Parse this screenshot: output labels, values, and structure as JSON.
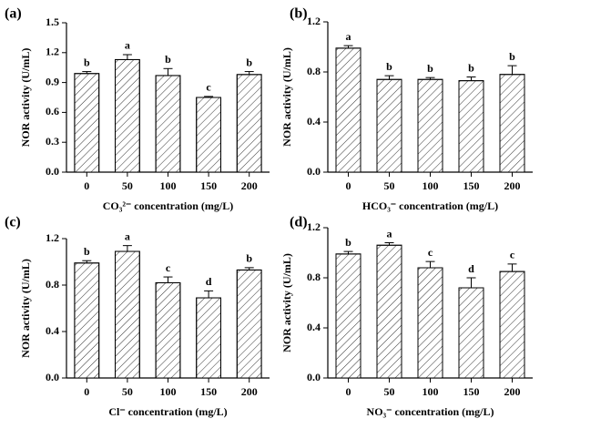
{
  "chart_data": [
    {
      "type": "bar",
      "title": "(a)",
      "xlabel": "CO₃²⁻ concentration (mg/L)",
      "ylabel": "NOR activity (U/mL)",
      "categories": [
        "0",
        "50",
        "100",
        "150",
        "200"
      ],
      "values": [
        0.99,
        1.13,
        0.97,
        0.75,
        0.98
      ],
      "errors": [
        0.02,
        0.05,
        0.07,
        0.01,
        0.03
      ],
      "annotations": [
        "b",
        "a",
        "b",
        "c",
        "b"
      ],
      "ylim": [
        0,
        1.5
      ],
      "yticks": [
        {
          "value": 0,
          "label": "0.0"
        },
        0.3,
        0.6,
        0.9,
        1.2,
        1.5
      ],
      "color": "#ffffff"
    },
    {
      "type": "bar",
      "title": "(b)",
      "xlabel": "HCO₃⁻ concentration (mg/L)",
      "ylabel": "NOR activity (U/mL)",
      "categories": [
        "0",
        "50",
        "100",
        "150",
        "200"
      ],
      "values": [
        0.99,
        0.74,
        0.74,
        0.73,
        0.78
      ],
      "errors": [
        0.02,
        0.03,
        0.015,
        0.03,
        0.07
      ],
      "annotations": [
        "a",
        "b",
        "b",
        "b",
        "b"
      ],
      "ylim": [
        0,
        1.2
      ],
      "yticks": [
        {
          "value": 0,
          "label": "0.0"
        },
        0.4,
        0.8,
        1.2
      ],
      "color": "#ffffff"
    },
    {
      "type": "bar",
      "title": "(c)",
      "xlabel": "Cl⁻ concentration (mg/L)",
      "ylabel": "NOR activity (U/mL)",
      "categories": [
        "0",
        "50",
        "100",
        "150",
        "200"
      ],
      "values": [
        0.99,
        1.09,
        0.82,
        0.69,
        0.93
      ],
      "errors": [
        0.02,
        0.05,
        0.05,
        0.06,
        0.02
      ],
      "annotations": [
        "b",
        "a",
        "c",
        "d",
        "b"
      ],
      "ylim": [
        0,
        1.2
      ],
      "yticks": [
        {
          "value": 0,
          "label": "0.0"
        },
        0.4,
        0.8,
        1.2
      ],
      "color": "#ffffff"
    },
    {
      "type": "bar",
      "title": "(d)",
      "xlabel": "NO₃⁻ concentration (mg/L)",
      "ylabel": "NOR activity (U/mL)",
      "categories": [
        "0",
        "50",
        "100",
        "150",
        "200"
      ],
      "values": [
        0.99,
        1.06,
        0.88,
        0.72,
        0.85
      ],
      "errors": [
        0.02,
        0.02,
        0.05,
        0.08,
        0.06
      ],
      "annotations": [
        "b",
        "a",
        "c",
        "d",
        "c"
      ],
      "ylim": [
        0,
        1.2
      ],
      "yticks": [
        {
          "value": 0,
          "label": "0.0"
        },
        0.4,
        0.8,
        1.2
      ],
      "color": "#ffffff"
    }
  ]
}
